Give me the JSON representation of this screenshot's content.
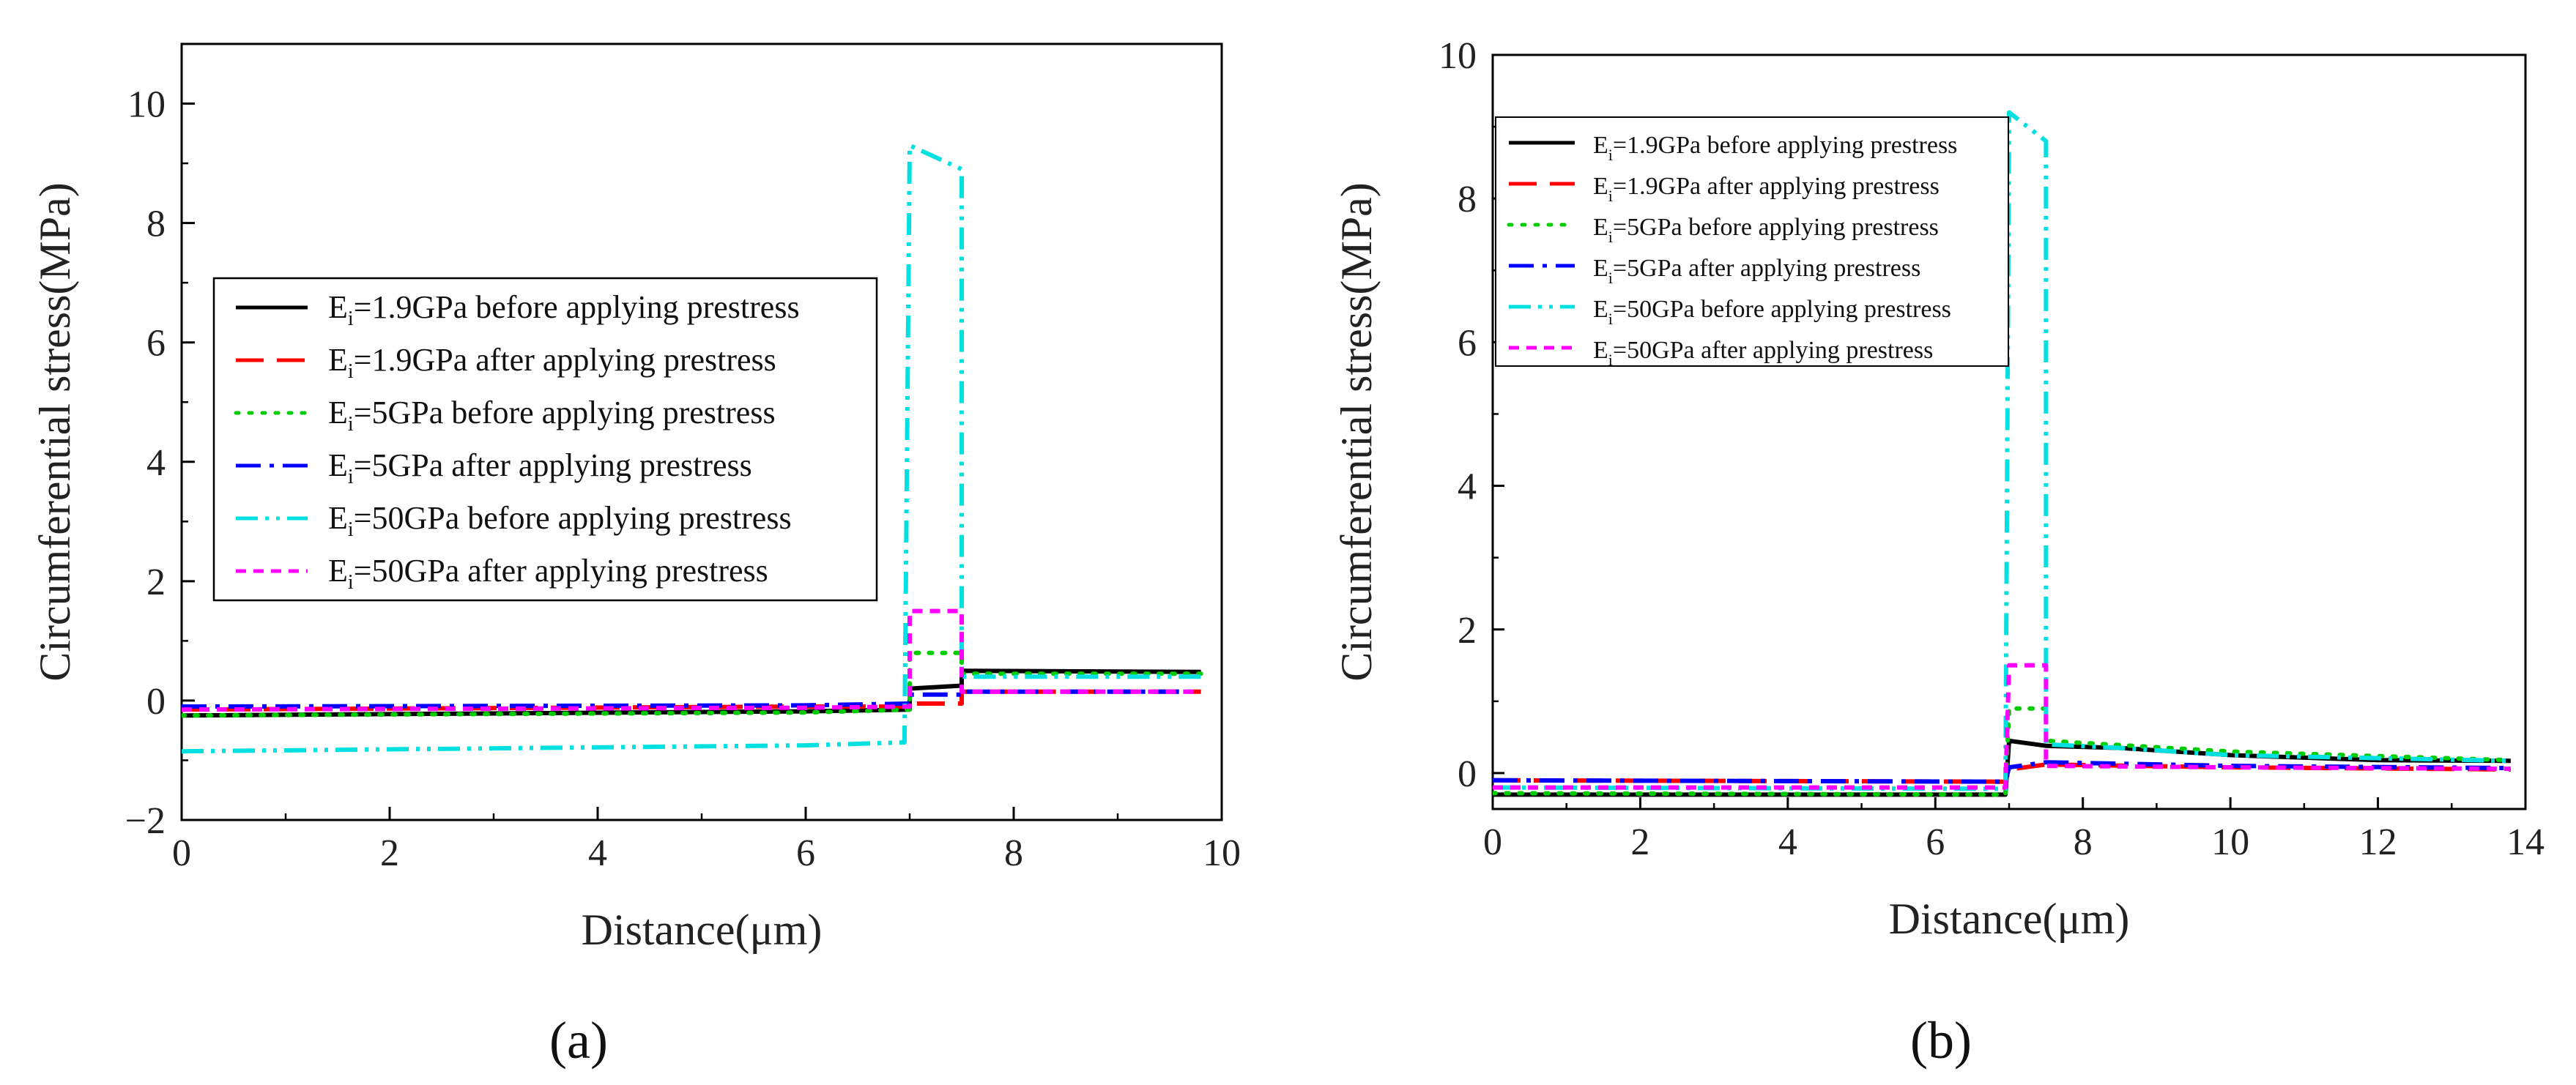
{
  "chart_data": [
    {
      "type": "line",
      "panel_label": "(a)",
      "xlabel": "Distance(μm)",
      "ylabel": "Circumferential stress(MPa)",
      "xlim": [
        0,
        10
      ],
      "ylim": [
        -2,
        11
      ],
      "xticks": [
        0,
        2,
        4,
        6,
        8,
        10
      ],
      "yticks": [
        -2,
        0,
        2,
        4,
        6,
        8,
        10
      ],
      "legend_position": "center-left",
      "series": [
        {
          "name": "Ei=1.9GPa before applying prestress",
          "base": "E",
          "sub": "i",
          "rest": "=1.9GPa before applying prestress",
          "color": "#000000",
          "dash": "solid",
          "x": [
            0,
            6,
            7,
            7,
            7.5,
            7.5,
            9.8
          ],
          "y": [
            -0.25,
            -0.18,
            -0.15,
            0.2,
            0.25,
            0.5,
            0.48
          ]
        },
        {
          "name": "Ei=1.9GPa after applying prestress",
          "base": "E",
          "sub": "i",
          "rest": "=1.9GPa after applying prestress",
          "color": "#ff0000",
          "dash": "dash",
          "x": [
            0,
            6,
            7,
            7,
            7.5,
            7.5,
            9.8
          ],
          "y": [
            -0.15,
            -0.1,
            -0.1,
            -0.05,
            -0.05,
            0.15,
            0.15
          ]
        },
        {
          "name": "Ei=5GPa before applying prestress",
          "base": "E",
          "sub": "i",
          "rest": "=5GPa before applying prestress",
          "color": "#00cc00",
          "dash": "dot",
          "x": [
            0,
            6,
            7,
            7,
            7.5,
            7.5,
            9.8
          ],
          "y": [
            -0.25,
            -0.2,
            -0.15,
            0.8,
            0.8,
            0.45,
            0.45
          ]
        },
        {
          "name": "Ei=5GPa after applying prestress",
          "base": "E",
          "sub": "i",
          "rest": "=5GPa after applying prestress",
          "color": "#0000ff",
          "dash": "dashdot",
          "x": [
            0,
            6,
            7,
            7,
            7.5,
            7.5,
            9.8
          ],
          "y": [
            -0.1,
            -0.08,
            -0.05,
            0.1,
            0.1,
            0.15,
            0.15
          ]
        },
        {
          "name": "Ei=50GPa before applying prestress",
          "base": "E",
          "sub": "i",
          "rest": "=50GPa before applying prestress",
          "color": "#00e0e0",
          "dash": "dashdotdot",
          "x": [
            0,
            6,
            6.95,
            7,
            7.5,
            7.5,
            9.8
          ],
          "y": [
            -0.85,
            -0.75,
            -0.7,
            9.3,
            8.9,
            0.4,
            0.4
          ]
        },
        {
          "name": "Ei=50GPa after applying prestress",
          "base": "E",
          "sub": "i",
          "rest": "=50GPa after applying prestress",
          "color": "#ff00ff",
          "dash": "shortdash",
          "x": [
            0,
            6,
            7,
            7,
            7.5,
            7.5,
            9.8
          ],
          "y": [
            -0.15,
            -0.12,
            -0.1,
            1.5,
            1.5,
            0.15,
            0.15
          ]
        }
      ]
    },
    {
      "type": "line",
      "panel_label": "(b)",
      "xlabel": "Distance(μm)",
      "ylabel": "Circumferential stress(MPa)",
      "xlim": [
        0,
        14
      ],
      "ylim": [
        -0.5,
        10
      ],
      "xticks": [
        0,
        2,
        4,
        6,
        8,
        10,
        12,
        14
      ],
      "yticks": [
        0,
        2,
        4,
        6,
        8,
        10
      ],
      "legend_position": "top-left",
      "series": [
        {
          "name": "Ei=1.9GPa before applying prestress",
          "base": "E",
          "sub": "i",
          "rest": "=1.9GPa before applying prestress",
          "color": "#000000",
          "dash": "solid",
          "x": [
            0,
            6.95,
            7,
            7.5,
            8.5,
            10,
            12,
            13.8
          ],
          "y": [
            -0.3,
            -0.3,
            0.45,
            0.38,
            0.35,
            0.25,
            0.18,
            0.17
          ]
        },
        {
          "name": "Ei=1.9GPa after applying prestress",
          "base": "E",
          "sub": "i",
          "rest": "=1.9GPa after applying prestress",
          "color": "#ff0000",
          "dash": "dash",
          "x": [
            0,
            6.95,
            7,
            7.5,
            10,
            13.8
          ],
          "y": [
            -0.1,
            -0.12,
            0.05,
            0.12,
            0.08,
            0.05
          ]
        },
        {
          "name": "Ei=5GPa before applying prestress",
          "base": "E",
          "sub": "i",
          "rest": "=5GPa before applying prestress",
          "color": "#00cc00",
          "dash": "dot",
          "x": [
            0,
            6.95,
            7,
            7.5,
            7.5,
            10,
            13.8
          ],
          "y": [
            -0.28,
            -0.3,
            0.9,
            0.9,
            0.45,
            0.3,
            0.18
          ]
        },
        {
          "name": "Ei=5GPa after applying prestress",
          "base": "E",
          "sub": "i",
          "rest": "=5GPa after applying prestress",
          "color": "#0000ff",
          "dash": "dashdot",
          "x": [
            0,
            6.95,
            7,
            7.5,
            10,
            13.8
          ],
          "y": [
            -0.1,
            -0.12,
            0.08,
            0.15,
            0.1,
            0.07
          ]
        },
        {
          "name": "Ei=50GPa before applying prestress",
          "base": "E",
          "sub": "i",
          "rest": "=50GPa before applying prestress",
          "color": "#00e0e0",
          "dash": "dashdotdot",
          "x": [
            0,
            6.95,
            7,
            7.5,
            7.5,
            8.5,
            10,
            13.8
          ],
          "y": [
            -0.2,
            -0.22,
            9.2,
            8.8,
            0.4,
            0.35,
            0.25,
            0.17
          ]
        },
        {
          "name": "Ei=50GPa after applying prestress",
          "base": "E",
          "sub": "i",
          "rest": "=50GPa after applying prestress",
          "color": "#ff00ff",
          "dash": "shortdash",
          "x": [
            0,
            6.95,
            7,
            7.5,
            7.5,
            10,
            13.8
          ],
          "y": [
            -0.2,
            -0.2,
            1.5,
            1.5,
            0.1,
            0.08,
            0.06
          ]
        }
      ]
    }
  ]
}
